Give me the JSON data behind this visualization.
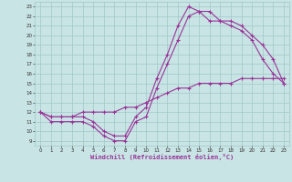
{
  "xlabel": "Windchill (Refroidissement éolien,°C)",
  "x_ticks": [
    0,
    1,
    2,
    3,
    4,
    5,
    6,
    7,
    8,
    9,
    10,
    11,
    12,
    13,
    14,
    15,
    16,
    17,
    18,
    19,
    20,
    21,
    22,
    23
  ],
  "y_ticks": [
    9,
    10,
    11,
    12,
    13,
    14,
    15,
    16,
    17,
    18,
    19,
    20,
    21,
    22,
    23
  ],
  "xlim": [
    -0.5,
    23.5
  ],
  "ylim": [
    8.5,
    23.5
  ],
  "bg_color": "#c8e4e4",
  "line_color": "#993399",
  "grid_color": "#a0c8c8",
  "line1_x": [
    0,
    1,
    2,
    3,
    4,
    5,
    6,
    7,
    8,
    9,
    10,
    11,
    12,
    13,
    14,
    15,
    16,
    17,
    18,
    19,
    20,
    21,
    22,
    23
  ],
  "line1_y": [
    12,
    11,
    11,
    11,
    11,
    10.5,
    9.5,
    9,
    9,
    11,
    11.5,
    14.5,
    17,
    19.5,
    22,
    22.5,
    22.5,
    21.5,
    21.5,
    21,
    20,
    19,
    17.5,
    15
  ],
  "line2_x": [
    0,
    1,
    2,
    3,
    4,
    5,
    6,
    7,
    8,
    9,
    10,
    11,
    12,
    13,
    14,
    15,
    16,
    17,
    18,
    19,
    20,
    21,
    22,
    23
  ],
  "line2_y": [
    12,
    11.5,
    11.5,
    11.5,
    11.5,
    11,
    10,
    9.5,
    9.5,
    11.5,
    12.5,
    15.5,
    18,
    21,
    23,
    22.5,
    21.5,
    21.5,
    21,
    20.5,
    19.5,
    17.5,
    16,
    15
  ],
  "line3_x": [
    0,
    1,
    2,
    3,
    4,
    5,
    6,
    7,
    8,
    9,
    10,
    11,
    12,
    13,
    14,
    15,
    16,
    17,
    18,
    19,
    20,
    21,
    22,
    23
  ],
  "line3_y": [
    12,
    11.5,
    11.5,
    11.5,
    12,
    12,
    12,
    12,
    12.5,
    12.5,
    13,
    13.5,
    14,
    14.5,
    14.5,
    15,
    15,
    15,
    15,
    15.5,
    15.5,
    15.5,
    15.5,
    15.5
  ],
  "marker": "+",
  "markersize": 3,
  "linewidth": 0.8
}
